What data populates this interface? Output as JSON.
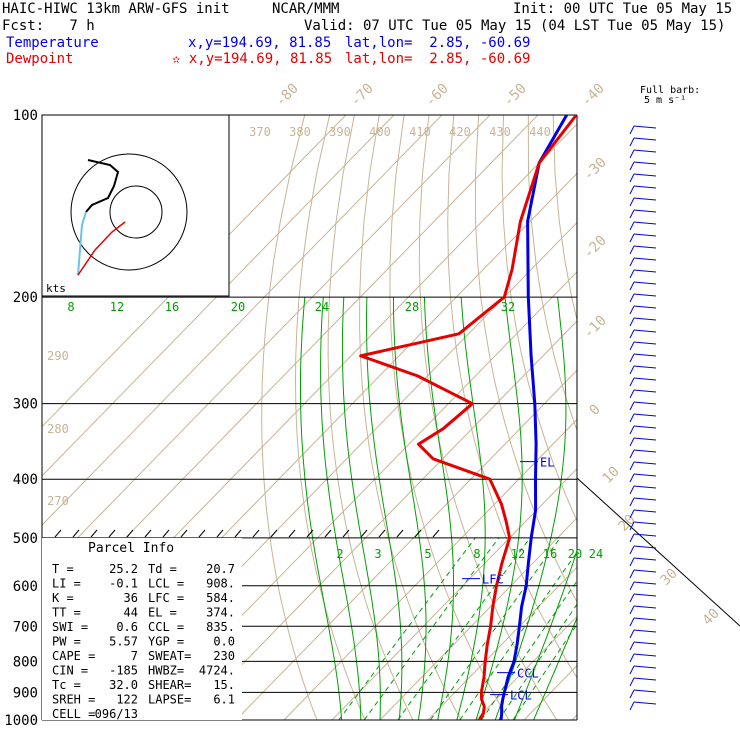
{
  "header": {
    "model": "HAIC-HIWC 13km ARW-GFS init",
    "org": "NCAR/MMM",
    "init": "Init: 00 UTC Tue 05 May 15",
    "fcst": "Fcst:   7 h",
    "valid": "Valid: 07 UTC Tue 05 May 15 (04 LST Tue 05 May 15)",
    "temp_label": "Temperature",
    "dew_label": "Dewpoint",
    "temp_xy": "x,y=194.69, 81.85",
    "dew_xy": "✫ x,y=194.69, 81.85",
    "temp_latlon": "lat,lon=  2.85, -60.69",
    "dew_latlon": "lat,lon=  2.85, -60.69",
    "barb_title1": "Full barb:",
    "barb_title2": "5 m s⁻¹"
  },
  "colors": {
    "temperature": "#0000e6",
    "dewpoint": "#e60000",
    "mixing_ratio": "#00a000",
    "isotherm": "#c8b496",
    "axis": "#000000"
  },
  "parcel": {
    "title": "Parcel Info",
    "rows": [
      [
        "T  =",
        "25.2",
        "Td =",
        "20.7"
      ],
      [
        "LI =",
        "-0.1",
        "LCL =",
        "908."
      ],
      [
        "K  =",
        "36",
        "LFC =",
        "584."
      ],
      [
        "TT =",
        "44",
        "EL  =",
        "374."
      ],
      [
        "SWI =",
        "0.6",
        "CCL =",
        "835."
      ],
      [
        "PW =",
        "5.57",
        "YGP =",
        "0.0"
      ],
      [
        "CAPE =",
        "7",
        "SWEAT=",
        "230"
      ],
      [
        "CIN =",
        "-185",
        "HWBZ=",
        "4724."
      ],
      [
        "Tc =",
        "32.0",
        "SHEAR=",
        "15."
      ],
      [
        "SREH =",
        "122",
        "LAPSE=",
        "6.1"
      ],
      [
        "CELL =",
        "096/13",
        "",
        ""
      ]
    ]
  },
  "hodograph": {
    "units": "kts"
  },
  "chart_data": {
    "type": "line",
    "title": "",
    "yscale": "log-pressure",
    "ylim": [
      1000,
      100
    ],
    "pressure_ticks": [
      100,
      200,
      300,
      400,
      500,
      600,
      700,
      800,
      900,
      1000
    ],
    "isotherm_labels": [
      -80,
      -70,
      -60,
      -50,
      -40,
      -30,
      -20,
      -10,
      0,
      10,
      20,
      30,
      40
    ],
    "theta_labels": [
      370,
      380,
      390,
      400,
      410,
      420,
      430,
      440
    ],
    "theta_left_labels": [
      290,
      280,
      270
    ],
    "mixing_ratio_labels_upper": [
      8,
      12,
      16,
      20,
      24,
      28,
      32
    ],
    "mixing_ratio_labels_lower": [
      2,
      3,
      5,
      8,
      12,
      16,
      20,
      24
    ],
    "level_markers": [
      {
        "name": "EL",
        "p": 374
      },
      {
        "name": "LFC",
        "p": 584
      },
      {
        "name": "CCL",
        "p": 835
      },
      {
        "name": "LCL",
        "p": 908
      }
    ],
    "series": [
      {
        "name": "Temperature",
        "p": [
          1000,
          975,
          950,
          925,
          900,
          850,
          800,
          750,
          700,
          650,
          600,
          550,
          500,
          450,
          400,
          350,
          300,
          250,
          200,
          150,
          120,
          100
        ],
        "t": [
          25.2,
          24.0,
          22.6,
          21.4,
          20.3,
          18.0,
          16.0,
          13.2,
          10.0,
          6.5,
          3.2,
          -1.0,
          -5.5,
          -10.2,
          -16.5,
          -23.5,
          -32.0,
          -42.5,
          -55.0,
          -70.5,
          -80.0,
          -84.0
        ]
      },
      {
        "name": "Dewpoint",
        "p": [
          1000,
          975,
          950,
          925,
          900,
          850,
          800,
          750,
          700,
          650,
          600,
          550,
          500,
          470,
          440,
          400,
          370,
          350,
          330,
          300,
          270,
          250,
          230,
          200,
          180,
          150,
          120,
          100
        ],
        "t": [
          20.7,
          20.2,
          19.0,
          17.0,
          15.5,
          13.0,
          10.0,
          7.0,
          4.0,
          0.5,
          -3.0,
          -6.5,
          -10.0,
          -14.0,
          -18.5,
          -26.0,
          -42.0,
          -48.0,
          -46.0,
          -45.0,
          -62.0,
          -78.0,
          -62.0,
          -60.0,
          -64.0,
          -72.0,
          -80.0,
          -82.0
        ]
      }
    ]
  }
}
